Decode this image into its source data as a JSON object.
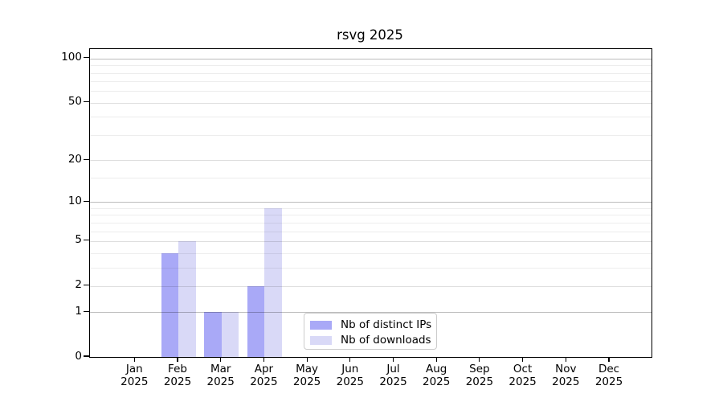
{
  "chart_data": {
    "type": "bar",
    "title": "rsvg 2025",
    "categories": [
      "Jan",
      "Feb",
      "Mar",
      "Apr",
      "May",
      "Jun",
      "Jul",
      "Aug",
      "Sep",
      "Oct",
      "Nov",
      "Dec"
    ],
    "x_year_label": "2025",
    "series": [
      {
        "name": "Nb of distinct IPs",
        "color": "#a9a9f7",
        "values": [
          0,
          4,
          1,
          2,
          0,
          0,
          0,
          0,
          0,
          0,
          0,
          0
        ]
      },
      {
        "name": "Nb of downloads",
        "color": "#d9d9f7",
        "values": [
          0,
          5,
          1,
          9,
          0,
          0,
          0,
          0,
          0,
          0,
          0,
          0
        ]
      }
    ],
    "y_axis": {
      "scale": "log10(1+v)",
      "ticks": [
        0,
        1,
        2,
        5,
        10,
        20,
        50,
        100
      ],
      "decade_ticks": [
        1,
        10,
        100
      ],
      "minor_ticks": [
        3,
        4,
        6,
        7,
        8,
        9,
        15,
        30,
        40,
        60,
        70,
        80,
        90
      ],
      "ylim": [
        0,
        116
      ]
    },
    "grid": true,
    "grid_above_bars": true,
    "legend_position": "lower center",
    "background_color": "#ffffff",
    "axis_color": "#000000"
  }
}
